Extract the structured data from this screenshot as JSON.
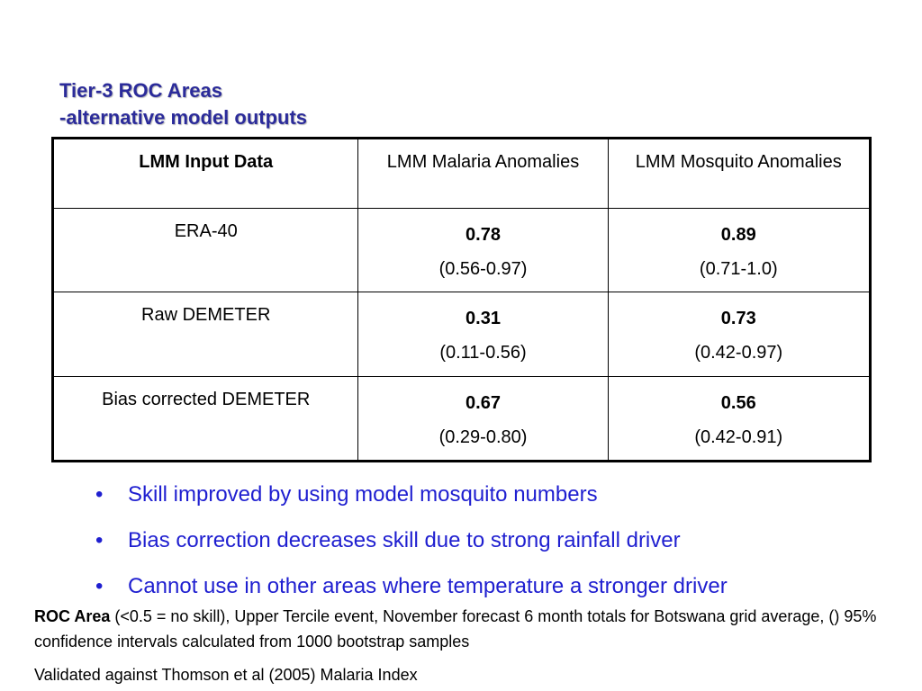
{
  "title": {
    "line1": "Tier-3 ROC Areas",
    "line2": "-alternative model outputs"
  },
  "table": {
    "headers": [
      "LMM Input Data",
      "LMM Malaria Anomalies",
      "LMM Mosquito Anomalies"
    ],
    "rows": [
      {
        "input": "ERA-40",
        "malaria": {
          "value": "0.78",
          "ci": "(0.56-0.97)"
        },
        "mosquito": {
          "value": "0.89",
          "ci": "(0.71-1.0)"
        }
      },
      {
        "input": "Raw DEMETER",
        "malaria": {
          "value": "0.31",
          "ci": "(0.11-0.56)"
        },
        "mosquito": {
          "value": "0.73",
          "ci": "(0.42-0.97)"
        }
      },
      {
        "input": "Bias corrected DEMETER",
        "malaria": {
          "value": "0.67",
          "ci": "(0.29-0.80)"
        },
        "mosquito": {
          "value": "0.56",
          "ci": "(0.42-0.91)"
        }
      }
    ]
  },
  "bullets": [
    "Skill improved by using model mosquito numbers",
    "Bias correction decreases skill due to strong rainfall driver",
    "Cannot use in other areas where temperature a stronger driver"
  ],
  "bullet_color": "#1f1fd0",
  "title_color": "#2b2b9a",
  "footnote": {
    "bold": "ROC Area",
    "text": " (<0.5 = no skill), Upper Tercile event, November forecast 6 month totals for Botswana grid average, () 95% confidence intervals calculated from 1000 bootstrap samples"
  },
  "validated": "Validated against Thomson et al (2005) Malaria Index"
}
